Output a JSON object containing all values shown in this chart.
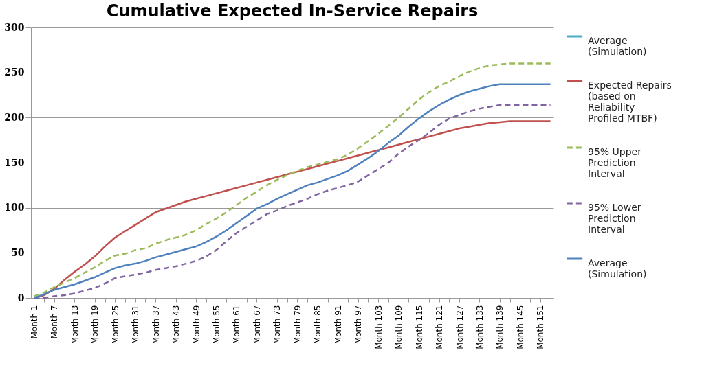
{
  "chart_data": {
    "type": "line",
    "title": "Cumulative Expected In-Service Repairs",
    "categories": [
      "Month 1",
      null,
      "Month 7",
      null,
      "Month 13",
      null,
      "Month 19",
      null,
      "Month 25",
      null,
      "Month 31",
      null,
      "Month 37",
      null,
      "Month 43",
      null,
      "Month 49",
      null,
      "Month 55",
      null,
      "Month 61",
      null,
      "Month 67",
      null,
      "Month 73",
      null,
      "Month 79",
      null,
      "Month 85",
      null,
      "Month 91",
      null,
      "Month 97",
      null,
      "Month 103",
      null,
      "Month 109",
      null,
      "Month 115",
      null,
      "Month 121",
      null,
      "Month 127",
      null,
      "Month 133",
      null,
      "Month 139",
      null,
      "Month 145",
      null,
      "Month 151",
      null
    ],
    "series": [
      {
        "name": "Average (Simulation)",
        "color": "#4bacc6",
        "line_style": "solid",
        "values": [
          null,
          null,
          null,
          null,
          null,
          null,
          null,
          null,
          null,
          null,
          null,
          null,
          null,
          null,
          null,
          null,
          null,
          null,
          null,
          null,
          null,
          null,
          null,
          null,
          null,
          null,
          null,
          null,
          null,
          null,
          null,
          null,
          null,
          null,
          null,
          null,
          null,
          null,
          null,
          null,
          null,
          null,
          null,
          null,
          null,
          null,
          null,
          null,
          null,
          null,
          null,
          null
        ]
      },
      {
        "name": "Expected Repairs (based on Reliability Profiled MTBF)",
        "color": "#c0504d",
        "line_style": "solid",
        "values": [
          0,
          3,
          10,
          20,
          29,
          37,
          46,
          57,
          67,
          74,
          81,
          88,
          95,
          99,
          103,
          107,
          110,
          113,
          116,
          119,
          122,
          125,
          128,
          131,
          134,
          137,
          140,
          143,
          146,
          149,
          152,
          155,
          158,
          161,
          164,
          167,
          170,
          173,
          176,
          179,
          182,
          185,
          188,
          190,
          192,
          194,
          195,
          196,
          196,
          196,
          196,
          196
        ]
      },
      {
        "name": "95% Upper Prediction Interval",
        "color": "#9bbb59",
        "line_style": "dashed",
        "values": [
          2,
          6,
          12,
          17,
          22,
          28,
          34,
          41,
          47,
          49,
          53,
          55,
          60,
          64,
          67,
          70,
          75,
          82,
          88,
          95,
          103,
          111,
          118,
          125,
          131,
          136,
          141,
          145,
          148,
          151,
          154,
          159,
          166,
          174,
          182,
          191,
          200,
          210,
          220,
          228,
          235,
          240,
          246,
          251,
          255,
          258,
          259,
          260,
          260,
          260,
          260,
          260
        ]
      },
      {
        "name": "95% Lower Prediction Interval",
        "color": "#8064a2",
        "line_style": "dashed",
        "values": [
          0,
          0,
          2,
          3,
          5,
          8,
          11,
          16,
          22,
          24,
          26,
          28,
          31,
          33,
          35,
          38,
          41,
          46,
          53,
          63,
          72,
          79,
          86,
          93,
          97,
          102,
          106,
          110,
          115,
          119,
          122,
          125,
          129,
          136,
          143,
          150,
          160,
          168,
          175,
          183,
          192,
          199,
          203,
          207,
          210,
          212,
          214,
          214,
          214,
          214,
          214,
          214
        ]
      },
      {
        "name": "Average (Simulation)",
        "color": "#4f81bd",
        "line_style": "solid",
        "values": [
          0,
          4,
          9,
          12,
          15,
          19,
          23,
          28,
          33,
          36,
          38,
          41,
          45,
          48,
          51,
          54,
          57,
          62,
          68,
          75,
          83,
          91,
          99,
          104,
          110,
          115,
          120,
          125,
          128,
          132,
          136,
          141,
          148,
          155,
          163,
          172,
          180,
          190,
          199,
          207,
          214,
          220,
          225,
          229,
          232,
          235,
          237,
          237,
          237,
          237,
          237,
          237
        ]
      }
    ],
    "ylim": [
      0,
      300
    ],
    "yticks": [
      0,
      50,
      100,
      150,
      200,
      250,
      300
    ],
    "grid": "y",
    "legend": "right"
  }
}
